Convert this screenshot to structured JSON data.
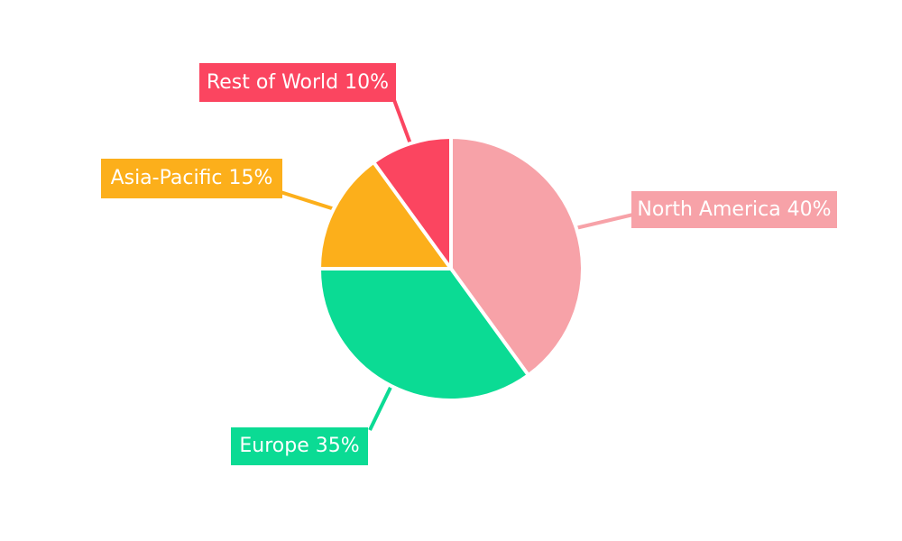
{
  "chart_data": {
    "type": "pie",
    "labels": [
      "North America",
      "Europe",
      "Asia-Pacific",
      "Rest of World"
    ],
    "values": [
      40,
      35,
      15,
      10
    ],
    "slices": [
      {
        "label": "North America",
        "value": 40,
        "display": "North America 40%",
        "color": "#F7A2A8"
      },
      {
        "label": "Europe",
        "value": 35,
        "display": "Europe 35%",
        "color": "#0BDB94"
      },
      {
        "label": "Asia-Pacific",
        "value": 15,
        "display": "Asia-Pacific 15%",
        "color": "#FCAF1B"
      },
      {
        "label": "Rest of World",
        "value": 10,
        "display": "Rest of World 10%",
        "color": "#FB4560"
      }
    ],
    "start_angle": "12 o'clock",
    "direction": "clockwise",
    "label_text_color": "#ffffff",
    "background_color": "#ffffff",
    "separator_color": "#ffffff",
    "legend": "none"
  }
}
